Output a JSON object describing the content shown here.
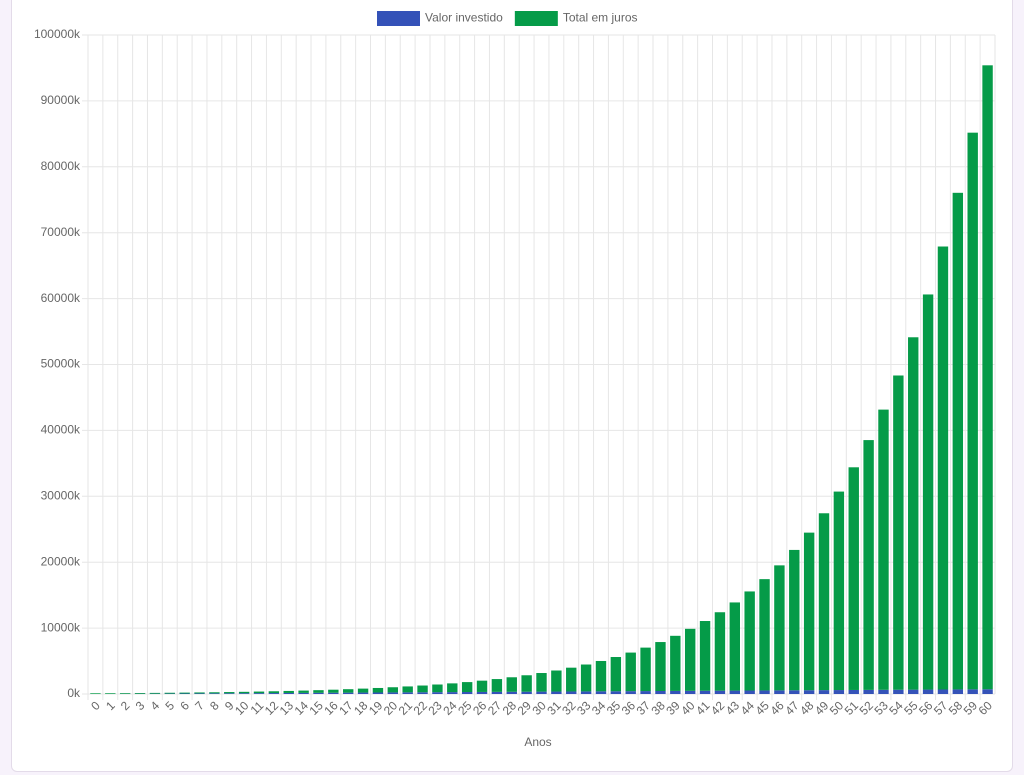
{
  "chart_data": {
    "type": "stacked-bar",
    "x_label": "Anos",
    "categories": [
      "0",
      "1",
      "2",
      "3",
      "4",
      "5",
      "6",
      "7",
      "8",
      "9",
      "10",
      "11",
      "12",
      "13",
      "14",
      "15",
      "16",
      "17",
      "18",
      "19",
      "20",
      "21",
      "22",
      "23",
      "24",
      "25",
      "26",
      "27",
      "28",
      "29",
      "30",
      "31",
      "32",
      "33",
      "34",
      "35",
      "36",
      "37",
      "38",
      "39",
      "40",
      "41",
      "42",
      "43",
      "44",
      "45",
      "46",
      "47",
      "48",
      "49",
      "50",
      "51",
      "52",
      "53",
      "54",
      "55",
      "56",
      "57",
      "58",
      "59",
      "60"
    ],
    "series": [
      {
        "name": "Valor investido",
        "color": "#3452b8",
        "values": [
          0,
          12,
          24,
          36,
          48,
          60,
          72,
          84,
          96,
          108,
          120,
          132,
          144,
          156,
          168,
          180,
          192,
          204,
          216,
          228,
          240,
          252,
          264,
          276,
          288,
          300,
          312,
          324,
          336,
          348,
          360,
          372,
          384,
          396,
          408,
          420,
          432,
          444,
          456,
          468,
          480,
          492,
          504,
          516,
          528,
          540,
          552,
          564,
          576,
          588,
          600,
          612,
          624,
          636,
          648,
          660,
          672,
          684,
          696,
          708,
          720
        ]
      },
      {
        "name": "Total em juros",
        "color": "#059b48",
        "values": [
          106,
          107,
          109,
          113,
          119,
          127,
          138,
          151,
          167,
          187,
          210,
          238,
          270,
          308,
          351,
          402,
          460,
          526,
          601,
          687,
          785,
          896,
          1022,
          1164,
          1325,
          1507,
          1712,
          1942,
          2202,
          2495,
          2824,
          3194,
          3610,
          4078,
          4602,
          5192,
          5853,
          6595,
          7428,
          8362,
          9410,
          10584,
          11902,
          13378,
          15034,
          16889,
          18969,
          21299,
          23911,
          26837,
          30116,
          33790,
          37906,
          42518,
          47684,
          53472,
          59956,
          67220,
          75356,
          84471,
          94680
        ]
      }
    ],
    "ylim": [
      0,
      100000
    ],
    "yticks": [
      {
        "value": 0,
        "label": "0k"
      },
      {
        "value": 10000,
        "label": "10000k"
      },
      {
        "value": 20000,
        "label": "20000k"
      },
      {
        "value": 30000,
        "label": "30000k"
      },
      {
        "value": 40000,
        "label": "40000k"
      },
      {
        "value": 50000,
        "label": "50000k"
      },
      {
        "value": 60000,
        "label": "60000k"
      },
      {
        "value": 70000,
        "label": "70000k"
      },
      {
        "value": 80000,
        "label": "80000k"
      },
      {
        "value": 90000,
        "label": "90000k"
      },
      {
        "value": 100000,
        "label": "100000k"
      }
    ],
    "grid": true,
    "legend": "top"
  }
}
